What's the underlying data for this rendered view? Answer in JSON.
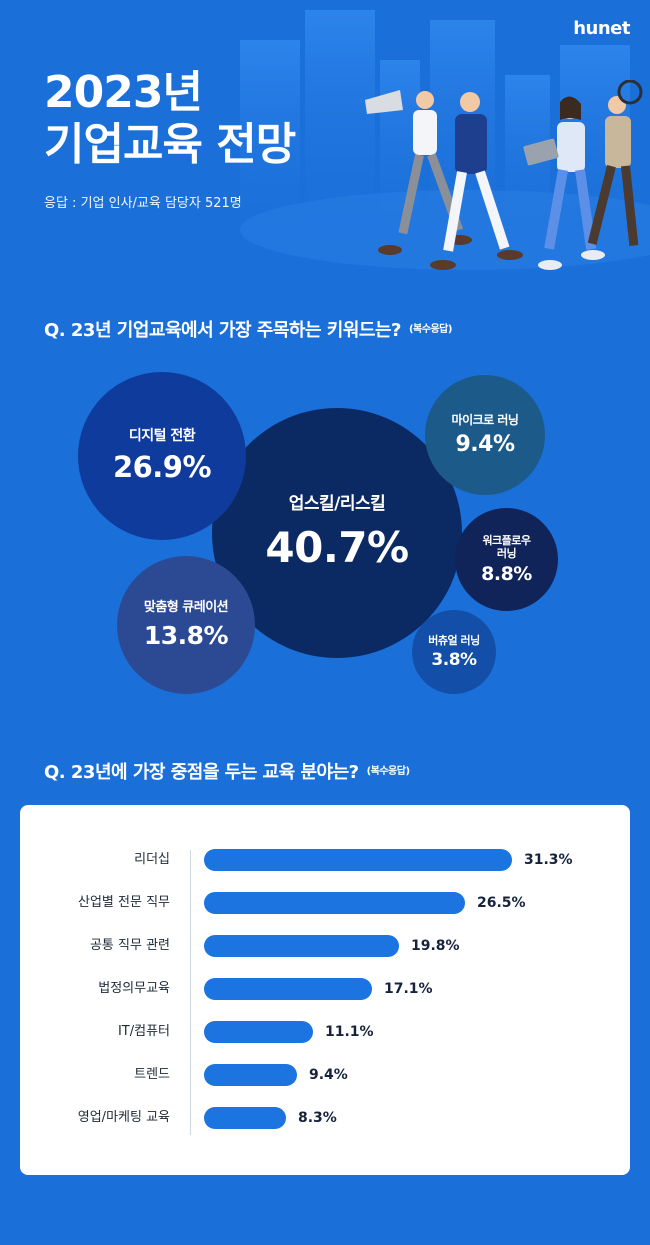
{
  "brand": "hunet",
  "header": {
    "title_line1": "2023년",
    "title_line2": "기업교육 전망",
    "subtitle": "응답 : 기업 인사/교육 담당자 521명"
  },
  "question1": {
    "text": "Q. 23년 기업교육에서 가장 주목하는 키워드는?",
    "note": "(복수응답)"
  },
  "question2": {
    "text": "Q. 23년에 가장 중점을 두는 교육 분야는?",
    "note": "(복수응답)"
  },
  "colors": {
    "background": "#1a6fd8",
    "bar": "#1b74e0",
    "bubble_upskill": "#0b2a63",
    "bubble_digital": "#0e3b9c",
    "bubble_micro": "#1c5a89",
    "bubble_workflow": "#10245a",
    "bubble_custom": "#2c4a93",
    "bubble_virtual": "#134ea8"
  },
  "chart_data": [
    {
      "type": "bubble",
      "items": [
        {
          "label": "업스킬/리스킬",
          "value": 40.7,
          "display": "40.7%"
        },
        {
          "label": "디지털 전환",
          "value": 26.9,
          "display": "26.9%"
        },
        {
          "label": "맞춤형 큐레이션",
          "value": 13.8,
          "display": "13.8%"
        },
        {
          "label": "마이크로 러닝",
          "value": 9.4,
          "display": "9.4%"
        },
        {
          "label": "워크플로우\n러닝",
          "value": 8.8,
          "display": "8.8%"
        },
        {
          "label": "버츄얼 러닝",
          "value": 3.8,
          "display": "3.8%"
        }
      ]
    },
    {
      "type": "bar",
      "orientation": "horizontal",
      "categories": [
        "리더십",
        "산업별 전문 직무",
        "공통 직무 관련",
        "법정의무교육",
        "IT/컴퓨터",
        "트렌드",
        "영업/마케팅 교육"
      ],
      "values": [
        31.3,
        26.5,
        19.8,
        17.1,
        11.1,
        9.4,
        8.3
      ],
      "value_labels": [
        "31.3%",
        "26.5%",
        "19.8%",
        "17.1%",
        "11.1%",
        "9.4%",
        "8.3%"
      ],
      "xlim": [
        0,
        33
      ]
    }
  ]
}
